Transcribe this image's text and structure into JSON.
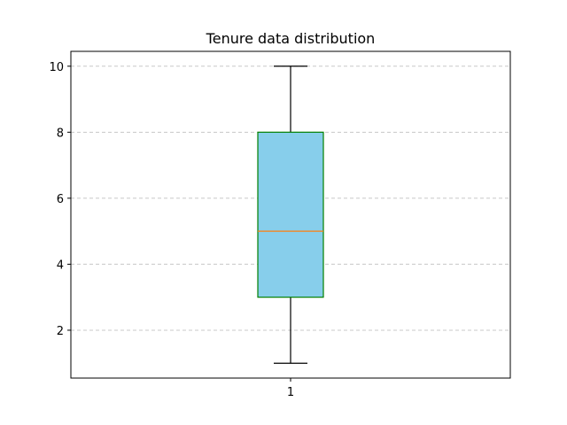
{
  "chart_data": {
    "type": "box",
    "title": "Tenure data distribution",
    "xlabel": "",
    "ylabel": "",
    "categories": [
      "1"
    ],
    "boxes": [
      {
        "label": "1",
        "whisker_low": 1,
        "q1": 3,
        "median": 5,
        "q3": 8,
        "whisker_high": 10
      }
    ],
    "ylim": [
      0.55,
      10.45
    ],
    "yticks": [
      2,
      4,
      6,
      8,
      10
    ],
    "ytick_labels": [
      "2",
      "4",
      "6",
      "8",
      "10"
    ],
    "grid": "y-dashed",
    "legend": "none",
    "colors": {
      "box_fill": "#87ceeb",
      "box_edge": "#008000",
      "median": "#ff7f0e",
      "whisker": "#000000",
      "grid": "#c8c8c8"
    }
  }
}
